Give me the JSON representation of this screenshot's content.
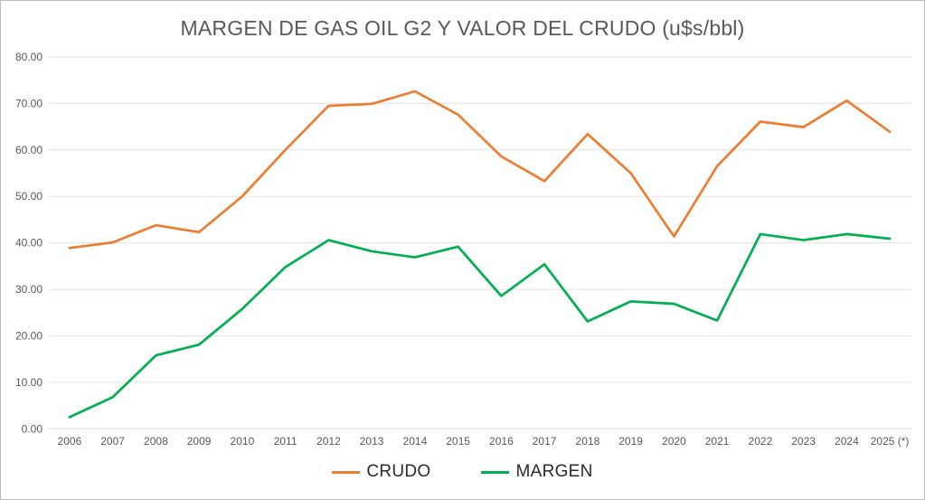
{
  "chart_data": {
    "type": "line",
    "title": "MARGEN DE GAS OIL G2 Y VALOR DEL CRUDO (u$s/bbl)",
    "categories": [
      "2006",
      "2007",
      "2008",
      "2009",
      "2010",
      "2011",
      "2012",
      "2013",
      "2014",
      "2015",
      "2016",
      "2017",
      "2018",
      "2019",
      "2020",
      "2021",
      "2022",
      "2023",
      "2024",
      "2025 (*)"
    ],
    "series": [
      {
        "name": "CRUDO",
        "color": "#ED7D31",
        "values": [
          38.9,
          40.1,
          43.8,
          42.3,
          50.0,
          60.0,
          69.5,
          69.9,
          72.6,
          67.6,
          58.6,
          53.3,
          63.4,
          55.0,
          41.4,
          56.5,
          66.1,
          64.9,
          70.6,
          63.9
        ]
      },
      {
        "name": "MARGEN",
        "color": "#00B050",
        "values": [
          2.5,
          6.8,
          15.8,
          18.1,
          25.8,
          34.8,
          40.6,
          38.2,
          36.9,
          39.2,
          28.6,
          35.4,
          23.1,
          27.4,
          26.9,
          23.3,
          41.9,
          40.6,
          41.9,
          40.9
        ]
      }
    ],
    "ylim": [
      0,
      80
    ],
    "y_tick_labels": [
      "0.00",
      "10.00",
      "20.00",
      "30.00",
      "40.00",
      "50.00",
      "60.00",
      "70.00",
      "80.00"
    ],
    "grid": true,
    "legend_position": "bottom",
    "gridline_color": "#E3E3E3",
    "tick_label_color": "#595959"
  }
}
